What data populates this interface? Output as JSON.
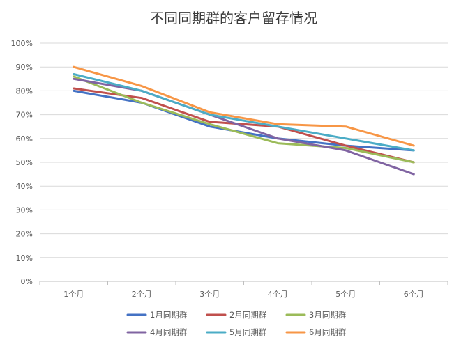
{
  "chart_data": {
    "type": "line",
    "title": "不同同期群的客户留存情况",
    "xlabel": "",
    "ylabel": "",
    "categories": [
      "1个月",
      "2个月",
      "3个月",
      "4个月",
      "5个月",
      "6个月"
    ],
    "y_ticks": [
      "0%",
      "10%",
      "20%",
      "30%",
      "40%",
      "50%",
      "60%",
      "70%",
      "80%",
      "90%",
      "100%"
    ],
    "ylim": [
      0,
      100
    ],
    "grid": true,
    "legend_position": "bottom",
    "series": [
      {
        "name": "1月同期群",
        "color": "#4472C4",
        "values": [
          80,
          75,
          65,
          60,
          57,
          55
        ]
      },
      {
        "name": "2月同期群",
        "color": "#C0504D",
        "values": [
          81,
          77,
          67,
          65,
          57,
          50
        ]
      },
      {
        "name": "3月同期群",
        "color": "#9BBB59",
        "values": [
          86,
          75,
          66,
          58,
          56,
          50
        ]
      },
      {
        "name": "4月同期群",
        "color": "#8064A2",
        "values": [
          85,
          80,
          70,
          60,
          55,
          45
        ]
      },
      {
        "name": "5月同期群",
        "color": "#4BACC6",
        "values": [
          87,
          80,
          70,
          65,
          60,
          55
        ]
      },
      {
        "name": "6月同期群",
        "color": "#F79646",
        "values": [
          90,
          82,
          71,
          66,
          65,
          57
        ]
      }
    ]
  }
}
